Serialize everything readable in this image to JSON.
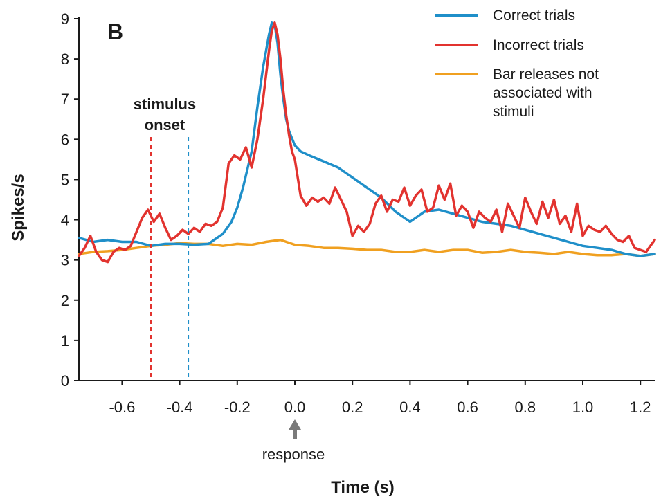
{
  "chart_data": {
    "type": "line",
    "panel_label": "B",
    "xlabel": "Time (s)",
    "ylabel": "Spikes/s",
    "xlim": [
      -0.75,
      1.25
    ],
    "ylim": [
      0,
      9
    ],
    "xticks": [
      -0.6,
      -0.4,
      -0.2,
      0.0,
      0.2,
      0.4,
      0.6,
      0.8,
      1.0,
      1.2
    ],
    "xtick_labels": [
      "-0.6",
      "-0.4",
      "-0.2",
      "0.0",
      "0.2",
      "0.4",
      "0.6",
      "0.8",
      "1.0",
      "1.2"
    ],
    "yticks": [
      0,
      1,
      2,
      3,
      4,
      5,
      6,
      7,
      8,
      9
    ],
    "ytick_labels": [
      "0",
      "1",
      "2",
      "3",
      "4",
      "5",
      "6",
      "7",
      "8",
      "9"
    ],
    "grid": false,
    "legend_position": "top-right",
    "series": [
      {
        "name": "Correct trials",
        "color": "#1f8fc9",
        "x": [
          -0.75,
          -0.7,
          -0.65,
          -0.6,
          -0.55,
          -0.5,
          -0.45,
          -0.4,
          -0.35,
          -0.3,
          -0.28,
          -0.25,
          -0.22,
          -0.2,
          -0.18,
          -0.15,
          -0.13,
          -0.11,
          -0.09,
          -0.08,
          -0.07,
          -0.06,
          -0.05,
          -0.04,
          -0.03,
          -0.02,
          0.0,
          0.02,
          0.05,
          0.1,
          0.15,
          0.2,
          0.25,
          0.3,
          0.35,
          0.4,
          0.45,
          0.5,
          0.55,
          0.6,
          0.65,
          0.7,
          0.75,
          0.8,
          0.85,
          0.9,
          0.95,
          1.0,
          1.05,
          1.1,
          1.15,
          1.2,
          1.25
        ],
        "y": [
          3.55,
          3.45,
          3.5,
          3.45,
          3.45,
          3.35,
          3.4,
          3.4,
          3.38,
          3.4,
          3.5,
          3.65,
          3.95,
          4.3,
          4.8,
          5.7,
          6.8,
          7.8,
          8.6,
          8.9,
          8.85,
          8.4,
          7.6,
          7.0,
          6.5,
          6.2,
          5.85,
          5.7,
          5.6,
          5.45,
          5.3,
          5.05,
          4.8,
          4.55,
          4.2,
          3.95,
          4.2,
          4.25,
          4.15,
          4.05,
          3.95,
          3.9,
          3.85,
          3.75,
          3.65,
          3.55,
          3.45,
          3.35,
          3.3,
          3.25,
          3.15,
          3.1,
          3.15
        ]
      },
      {
        "name": "Incorrect trials",
        "color": "#e2332f",
        "x": [
          -0.75,
          -0.73,
          -0.71,
          -0.69,
          -0.67,
          -0.65,
          -0.63,
          -0.61,
          -0.59,
          -0.57,
          -0.55,
          -0.53,
          -0.51,
          -0.49,
          -0.47,
          -0.45,
          -0.43,
          -0.41,
          -0.39,
          -0.37,
          -0.35,
          -0.33,
          -0.31,
          -0.29,
          -0.27,
          -0.25,
          -0.23,
          -0.21,
          -0.19,
          -0.17,
          -0.15,
          -0.13,
          -0.11,
          -0.09,
          -0.08,
          -0.07,
          -0.06,
          -0.05,
          -0.04,
          -0.03,
          -0.02,
          -0.01,
          0.0,
          0.02,
          0.04,
          0.06,
          0.08,
          0.1,
          0.12,
          0.14,
          0.16,
          0.18,
          0.2,
          0.22,
          0.24,
          0.26,
          0.28,
          0.3,
          0.32,
          0.34,
          0.36,
          0.38,
          0.4,
          0.42,
          0.44,
          0.46,
          0.48,
          0.5,
          0.52,
          0.54,
          0.56,
          0.58,
          0.6,
          0.62,
          0.64,
          0.66,
          0.68,
          0.7,
          0.72,
          0.74,
          0.76,
          0.78,
          0.8,
          0.82,
          0.84,
          0.86,
          0.88,
          0.9,
          0.92,
          0.94,
          0.96,
          0.98,
          1.0,
          1.02,
          1.04,
          1.06,
          1.08,
          1.1,
          1.12,
          1.14,
          1.16,
          1.18,
          1.2,
          1.22,
          1.24,
          1.25
        ],
        "y": [
          3.1,
          3.3,
          3.6,
          3.2,
          3.0,
          2.95,
          3.2,
          3.3,
          3.25,
          3.35,
          3.7,
          4.05,
          4.25,
          3.95,
          4.15,
          3.8,
          3.5,
          3.6,
          3.75,
          3.65,
          3.8,
          3.7,
          3.9,
          3.85,
          3.95,
          4.3,
          5.4,
          5.6,
          5.5,
          5.8,
          5.3,
          6.0,
          7.0,
          8.2,
          8.7,
          8.9,
          8.6,
          8.0,
          7.2,
          6.6,
          6.1,
          5.7,
          5.5,
          4.6,
          4.35,
          4.55,
          4.45,
          4.55,
          4.4,
          4.8,
          4.5,
          4.2,
          3.6,
          3.85,
          3.7,
          3.9,
          4.4,
          4.6,
          4.2,
          4.5,
          4.45,
          4.8,
          4.35,
          4.6,
          4.75,
          4.2,
          4.3,
          4.85,
          4.5,
          4.9,
          4.1,
          4.35,
          4.2,
          3.8,
          4.2,
          4.05,
          3.95,
          4.25,
          3.7,
          4.4,
          4.1,
          3.8,
          4.55,
          4.2,
          3.9,
          4.45,
          4.05,
          4.5,
          3.9,
          4.1,
          3.7,
          4.4,
          3.6,
          3.85,
          3.75,
          3.7,
          3.85,
          3.65,
          3.5,
          3.45,
          3.6,
          3.3,
          3.25,
          3.2,
          3.4,
          3.5
        ]
      },
      {
        "name": "Bar releases not associated with stimuli",
        "color": "#f0a020",
        "x": [
          -0.75,
          -0.7,
          -0.65,
          -0.6,
          -0.55,
          -0.5,
          -0.45,
          -0.4,
          -0.35,
          -0.3,
          -0.25,
          -0.2,
          -0.15,
          -0.1,
          -0.05,
          0.0,
          0.05,
          0.1,
          0.15,
          0.2,
          0.25,
          0.3,
          0.35,
          0.4,
          0.45,
          0.5,
          0.55,
          0.6,
          0.65,
          0.7,
          0.75,
          0.8,
          0.85,
          0.9,
          0.95,
          1.0,
          1.05,
          1.1,
          1.15,
          1.2,
          1.25
        ],
        "y": [
          3.15,
          3.2,
          3.22,
          3.25,
          3.3,
          3.35,
          3.38,
          3.42,
          3.4,
          3.4,
          3.35,
          3.4,
          3.38,
          3.45,
          3.5,
          3.38,
          3.35,
          3.3,
          3.3,
          3.28,
          3.25,
          3.25,
          3.2,
          3.2,
          3.25,
          3.2,
          3.25,
          3.25,
          3.18,
          3.2,
          3.25,
          3.2,
          3.18,
          3.15,
          3.2,
          3.15,
          3.12,
          3.12,
          3.15,
          3.1,
          3.15
        ]
      }
    ],
    "legend_entries": [
      "Correct trials",
      "Incorrect trials",
      "Bar releases not associated with stimuli"
    ],
    "annotations": {
      "stimulus_onset_lines": [
        {
          "x": -0.5,
          "color": "#e2332f"
        },
        {
          "x": -0.37,
          "color": "#1f8fc9"
        }
      ],
      "stimulus_label_1": "stimulus",
      "stimulus_label_2": "onset",
      "response_x": 0.0,
      "response_label": "response"
    }
  }
}
